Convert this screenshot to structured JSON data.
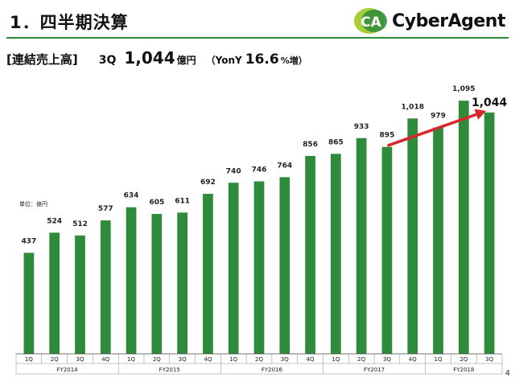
{
  "header": {
    "title": "1．四半期決算",
    "logo_text": "CyberAgent",
    "logo_mark_text": "CA",
    "brand_color": "#2e8b3a",
    "logo_accent": "#a6ce39"
  },
  "subtitle": {
    "label": "[連結売上高]",
    "quarter": "3Q",
    "value": "1,044",
    "unit": "億円",
    "yoy_prefix": "（YonY",
    "yoy_value": "16.6",
    "yoy_suffix": "%増）"
  },
  "unit_label": "単位：億円",
  "page_number": "4",
  "chart_data": {
    "type": "bar",
    "categories": [
      "1Q",
      "2Q",
      "3Q",
      "4Q",
      "1Q",
      "2Q",
      "3Q",
      "4Q",
      "1Q",
      "2Q",
      "3Q",
      "4Q",
      "1Q",
      "2Q",
      "3Q",
      "4Q",
      "1Q",
      "2Q",
      "3Q"
    ],
    "groups": [
      {
        "label": "FY2014",
        "count": 4
      },
      {
        "label": "FY2015",
        "count": 4
      },
      {
        "label": "FY2016",
        "count": 4
      },
      {
        "label": "FY2017",
        "count": 4
      },
      {
        "label": "FY2018",
        "count": 3
      }
    ],
    "values": [
      437,
      524,
      512,
      577,
      634,
      605,
      611,
      692,
      740,
      746,
      764,
      856,
      865,
      933,
      895,
      1018,
      979,
      1095,
      1044
    ],
    "labels": [
      "437",
      "524",
      "512",
      "577",
      "634",
      "605",
      "611",
      "692",
      "740",
      "746",
      "764",
      "856",
      "865",
      "933",
      "895",
      "1,018",
      "979",
      "1,095",
      "1,044"
    ],
    "ylim": [
      0,
      1200
    ],
    "bar_color": "#2e8b3a",
    "arrow_color": "#d9262b",
    "arrow": {
      "from_index": 14,
      "to_index": 18
    },
    "highlight_index": 18,
    "grid": false
  }
}
